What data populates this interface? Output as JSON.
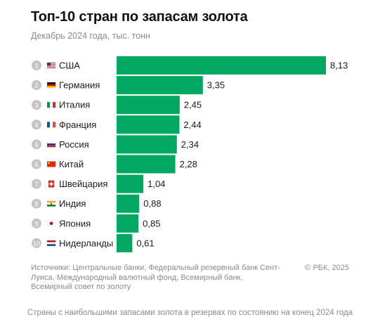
{
  "header": {
    "title": "Топ-10 стран по запасам золота",
    "subtitle": "Декабрь 2024 года, тыс. тонн"
  },
  "chart_data": {
    "type": "bar",
    "orientation": "horizontal",
    "title": "Топ-10 стран по запасам золота",
    "subtitle": "Декабрь 2024 года, тыс. тонн",
    "bar_color": "#00a862",
    "categories": [
      "США",
      "Германия",
      "Италия",
      "Франция",
      "Россия",
      "Китай",
      "Швейцария",
      "Индия",
      "Япония",
      "Нидерланды"
    ],
    "ranks": [
      "1",
      "2",
      "3",
      "4",
      "5",
      "6",
      "7",
      "8",
      "9",
      "10"
    ],
    "flags": [
      "us-flag-icon",
      "de-flag-icon",
      "it-flag-icon",
      "fr-flag-icon",
      "ru-flag-icon",
      "cn-flag-icon",
      "ch-flag-icon",
      "in-flag-icon",
      "jp-flag-icon",
      "nl-flag-icon"
    ],
    "values": [
      8.13,
      3.35,
      2.45,
      2.44,
      2.34,
      2.28,
      1.04,
      0.88,
      0.85,
      0.61
    ],
    "value_labels": [
      "8,13",
      "3,35",
      "2,45",
      "2,44",
      "2,34",
      "2,28",
      "1,04",
      "0,88",
      "0,85",
      "0,61"
    ],
    "xlim": [
      0,
      8.13
    ],
    "grid": false,
    "legend": "none"
  },
  "footer": {
    "sources": "Источники: Центральные банки, Федеральный резервный банк Сент-Луиса, Международный валютный фонд, Всемирный банк, Всемирный совет по золоту",
    "copyright": "© РБК, 2025"
  },
  "caption": "Страны с наибольшими запасами золота в резервах по состоянию на конец 2024 года"
}
